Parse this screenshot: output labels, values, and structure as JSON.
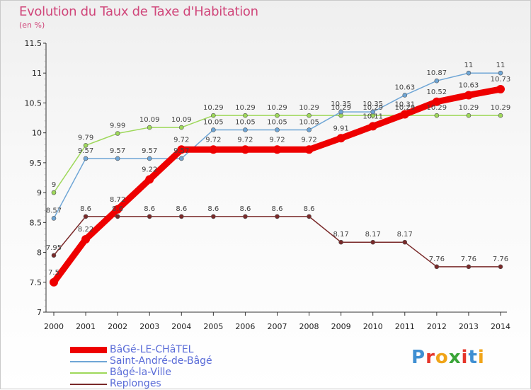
{
  "title": "Evolution du Taux de Taxe d'Habitation",
  "subtitle": "(en %)",
  "logo": {
    "text": "Proxiti",
    "letter_colors": [
      "#3f8fd2",
      "#e5362b",
      "#f0a418",
      "#3aa538",
      "#e5362b",
      "#3f8fd2",
      "#f0a418"
    ]
  },
  "chart_data": {
    "type": "line",
    "title": "Evolution du Taux de Taxe d'Habitation",
    "ylabel": "(en %)",
    "xlabel": "",
    "ylim": [
      7,
      11.5
    ],
    "yticks": [
      "7",
      "7.5",
      "8",
      "8.5",
      "9",
      "9.5",
      "10",
      "10.5",
      "11",
      "11.5"
    ],
    "x": [
      "2000",
      "2001",
      "2002",
      "2003",
      "2004",
      "2005",
      "2006",
      "2007",
      "2008",
      "2009",
      "2010",
      "2011",
      "2012",
      "2013",
      "2014"
    ],
    "grid": false,
    "legend_position": "bottom-left",
    "series": [
      {
        "name": "BâGé-LE-CHâTEL",
        "color": "#ee0000",
        "values": [
          7.5,
          8.22,
          8.72,
          9.22,
          9.72,
          9.72,
          9.72,
          9.72,
          9.72,
          9.91,
          10.11,
          10.31,
          10.52,
          10.63,
          10.73
        ],
        "labels": [
          "7.5",
          "8.22",
          "8.72",
          "9.22",
          "9.72",
          "9.72",
          "9.72",
          "9.72",
          "9.72",
          "9.91",
          "10.11",
          "10.31",
          "10.52",
          "10.63",
          "10.73"
        ]
      },
      {
        "name": "Saint-André-de-Bâgé",
        "color": "#6fa6d6",
        "values": [
          8.57,
          9.57,
          9.57,
          9.57,
          9.57,
          10.05,
          10.05,
          10.05,
          10.05,
          10.35,
          10.35,
          10.63,
          10.87,
          11,
          11
        ],
        "labels": [
          "8.57",
          "9.57",
          "9.57",
          "9.57",
          "9.57",
          "10.05",
          "10.05",
          "10.05",
          "10.05",
          "10.35",
          "10.35",
          "10.63",
          "10.87",
          "11",
          "11"
        ]
      },
      {
        "name": "Bâgé-la-Ville",
        "color": "#9ed85a",
        "values": [
          9,
          9.79,
          9.99,
          10.09,
          10.09,
          10.29,
          10.29,
          10.29,
          10.29,
          10.29,
          10.29,
          10.29,
          10.29,
          10.29,
          10.29
        ],
        "labels": [
          "9",
          "9.79",
          "9.99",
          "10.09",
          "10.09",
          "10.29",
          "10.29",
          "10.29",
          "10.29",
          "10.29",
          "10.29",
          "10.29",
          "10.29",
          "10.29",
          "10.29"
        ]
      },
      {
        "name": "Replonges",
        "color": "#7a2a2a",
        "values": [
          7.95,
          8.6,
          8.6,
          8.6,
          8.6,
          8.6,
          8.6,
          8.6,
          8.6,
          8.17,
          8.17,
          8.17,
          7.76,
          7.76,
          7.76
        ],
        "labels": [
          "7.95",
          "8.6",
          "8.6",
          "8.6",
          "8.6",
          "8.6",
          "8.6",
          "8.6",
          "8.6",
          "8.17",
          "8.17",
          "8.17",
          "7.76",
          "7.76",
          "7.76"
        ]
      }
    ]
  }
}
